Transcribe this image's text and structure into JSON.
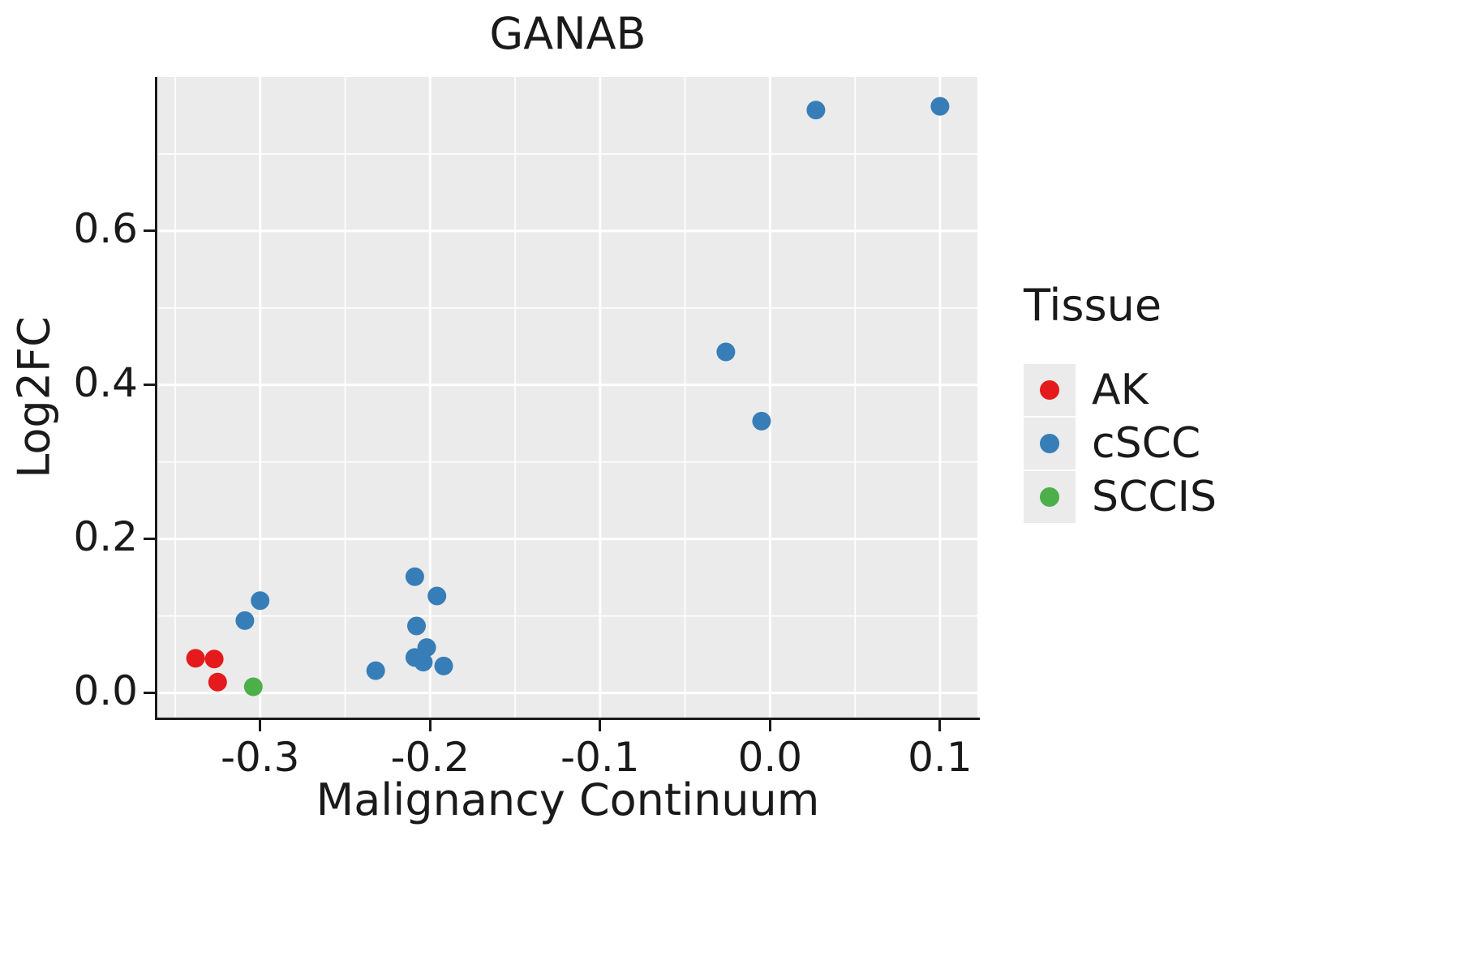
{
  "chart_data": {
    "type": "scatter",
    "title": "GANAB",
    "xlabel": "Malignancy Continuum",
    "ylabel": "Log2FC",
    "legend_title": "Tissue",
    "legend_position": "right",
    "grid": true,
    "plot_background": "#EBEBEB",
    "gridline_color": "#FFFFFF",
    "xlim": [
      -0.36,
      0.122
    ],
    "ylim": [
      -0.032,
      0.8
    ],
    "x_ticks": [
      -0.3,
      -0.2,
      -0.1,
      0.0,
      0.1
    ],
    "x_tick_labels": [
      "-0.3",
      "-0.2",
      "-0.1",
      "0.0",
      "0.1"
    ],
    "x_minor_ticks": [
      -0.35,
      -0.25,
      -0.15,
      -0.05,
      0.05
    ],
    "y_ticks": [
      0.0,
      0.2,
      0.4,
      0.6
    ],
    "y_tick_labels": [
      "0.0",
      "0.2",
      "0.4",
      "0.6"
    ],
    "y_minor_ticks": [
      0.1,
      0.3,
      0.5,
      0.7
    ],
    "series": [
      {
        "name": "AK",
        "color": "#E41A1C",
        "points": [
          [
            -0.338,
            0.045
          ],
          [
            -0.327,
            0.044
          ],
          [
            -0.325,
            0.014
          ]
        ]
      },
      {
        "name": "cSCC",
        "color": "#377EB8",
        "points": [
          [
            -0.3,
            0.12
          ],
          [
            -0.309,
            0.094
          ],
          [
            -0.232,
            0.029
          ],
          [
            -0.209,
            0.151
          ],
          [
            -0.196,
            0.126
          ],
          [
            -0.208,
            0.087
          ],
          [
            -0.209,
            0.046
          ],
          [
            -0.202,
            0.059
          ],
          [
            -0.204,
            0.04
          ],
          [
            -0.192,
            0.035
          ],
          [
            -0.026,
            0.443
          ],
          [
            -0.005,
            0.353
          ],
          [
            0.027,
            0.757
          ],
          [
            0.1,
            0.762
          ]
        ]
      },
      {
        "name": "SCCIS",
        "color": "#4DAF4A",
        "points": [
          [
            -0.304,
            0.008
          ]
        ]
      }
    ]
  }
}
